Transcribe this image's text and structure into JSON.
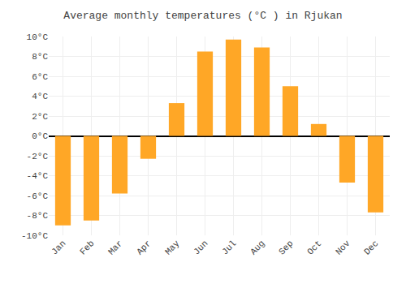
{
  "chart_data": {
    "type": "bar",
    "title": "Average monthly temperatures (°C ) in Rjukan",
    "categories": [
      "Jan",
      "Feb",
      "Mar",
      "Apr",
      "May",
      "Jun",
      "Jul",
      "Aug",
      "Sep",
      "Oct",
      "Nov",
      "Dec"
    ],
    "values": [
      -9,
      -8.5,
      -5.8,
      -2.3,
      3.3,
      8.5,
      9.7,
      8.9,
      5.0,
      1.2,
      -4.7,
      -7.7
    ],
    "color": "#FFA726",
    "ylim": [
      -10,
      10
    ],
    "yticks": [
      {
        "value": -10,
        "label": "-10°C"
      },
      {
        "value": -8,
        "label": "-8°C"
      },
      {
        "value": -6,
        "label": "-6°C"
      },
      {
        "value": -4,
        "label": "-4°C"
      },
      {
        "value": -2,
        "label": "-2°C"
      },
      {
        "value": 0,
        "label": "0°C"
      },
      {
        "value": 2,
        "label": "2°C"
      },
      {
        "value": 4,
        "label": "4°C"
      },
      {
        "value": 6,
        "label": "6°C"
      },
      {
        "value": 8,
        "label": "8°C"
      },
      {
        "value": 10,
        "label": "10°C"
      }
    ],
    "grid": true
  }
}
